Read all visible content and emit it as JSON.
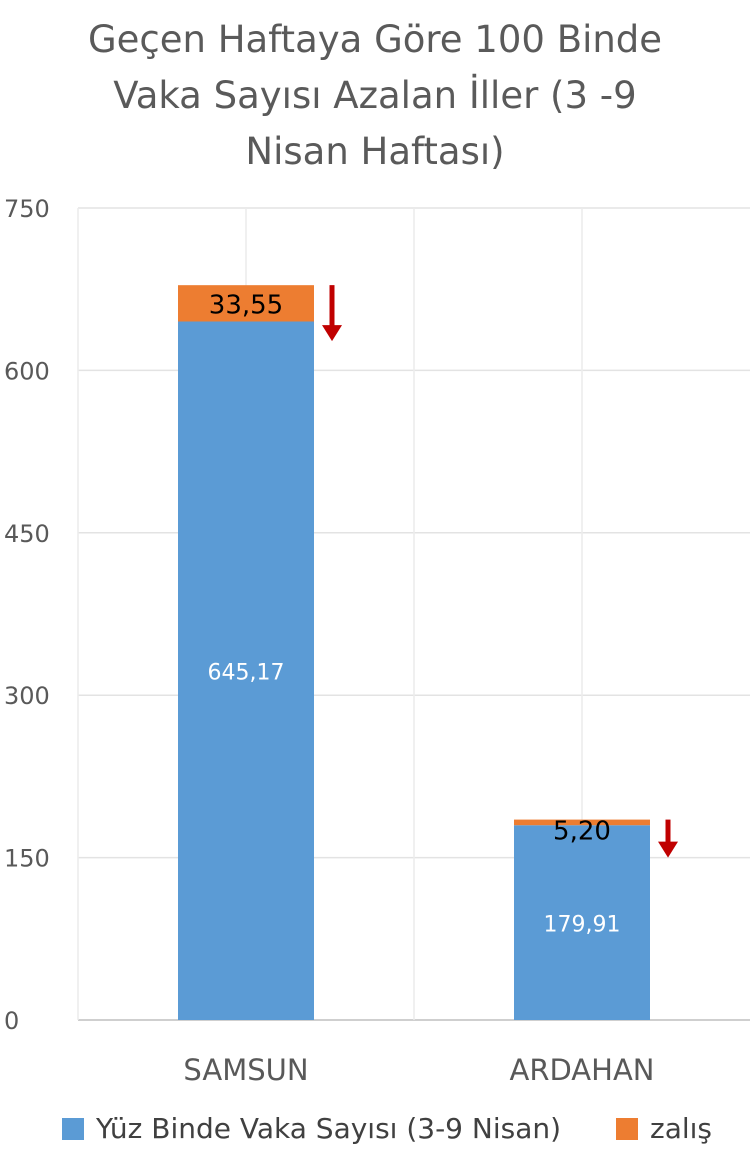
{
  "chart_data": {
    "type": "bar",
    "stacked": true,
    "title": "Geçen Haftaya Göre 100 Binde Vaka Sayısı Azalan İller (3 -9 Nisan Haftası)",
    "title_lines": [
      "Geçen Haftaya Göre 100 Binde",
      "Vaka Sayısı Azalan İller (3 -9",
      "Nisan Haftası)"
    ],
    "categories": [
      "SAMSUN",
      "ARDAHAN"
    ],
    "series": [
      {
        "name": "Yüz Binde Vaka Sayısı (3-9 Nisan)",
        "values": [
          645.17,
          179.91
        ],
        "labels": [
          "645,17",
          "179,91"
        ],
        "color": "#5b9bd5",
        "label_color": "#ffffff"
      },
      {
        "name": "zalış",
        "values": [
          33.55,
          5.2
        ],
        "labels": [
          "33,55",
          "5,20"
        ],
        "color": "#ed7d31",
        "label_color": "#000000"
      }
    ],
    "ylim": [
      0,
      750
    ],
    "yticks": [
      0,
      150,
      300,
      450,
      600,
      750
    ],
    "ytick_labels": [
      "0",
      "150",
      "300",
      "450",
      "600",
      "750"
    ],
    "grid": true,
    "legend": "bottom",
    "annotations": [
      {
        "type": "down-arrow",
        "category": "SAMSUN",
        "color": "#c00000"
      },
      {
        "type": "down-arrow",
        "category": "ARDAHAN",
        "color": "#c00000"
      }
    ],
    "xlabel": "",
    "ylabel": ""
  }
}
